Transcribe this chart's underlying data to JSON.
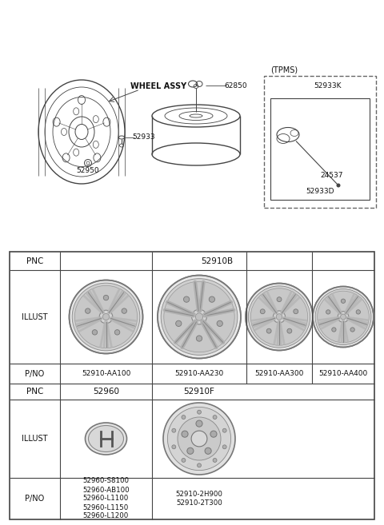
{
  "bg_color": "#ffffff",
  "line_color": "#444444",
  "text_color": "#111111",
  "dashed_color": "#666666",
  "gray_wheel": "#aaaaaa",
  "table": {
    "row1_val": "52910B",
    "row3_vals": [
      "52910-AA100",
      "52910-AA230",
      "52910-AA300",
      "52910-AA400"
    ],
    "row4_vals": [
      "52960",
      "52910F"
    ],
    "row6_col1": [
      "52960-S8100",
      "52960-AB100",
      "52960-L1100",
      "52960-L1150",
      "52960-L1200"
    ],
    "row6_col2": [
      "52910-2H900",
      "52910-2T300"
    ]
  }
}
